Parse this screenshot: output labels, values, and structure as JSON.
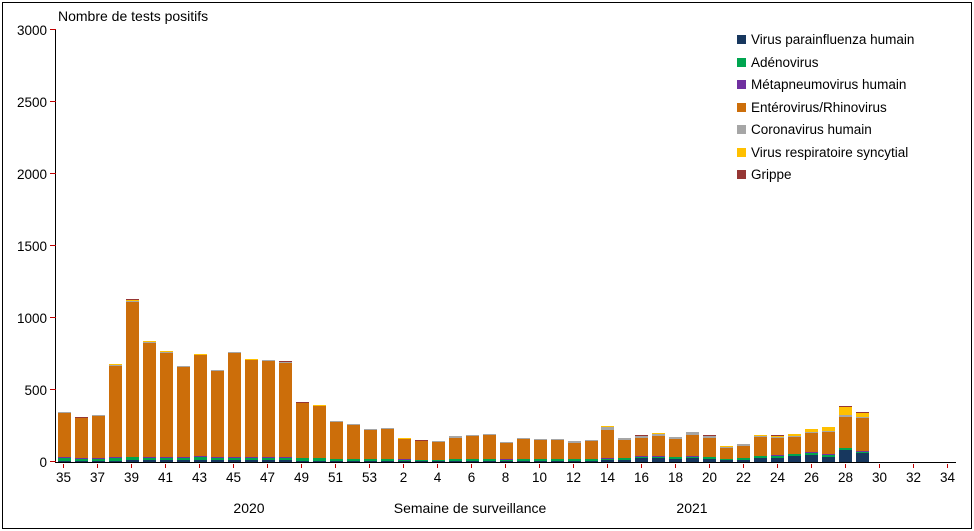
{
  "title": "Nombre de tests positifs",
  "x_axis": {
    "title": "Semaine de surveillance",
    "year_2020": "2020",
    "year_2021": "2021"
  },
  "chart_data": {
    "type": "bar",
    "stacked": true,
    "title": "Nombre de tests positifs",
    "xlabel": "Semaine de surveillance",
    "ylabel": "Nombre de tests positifs",
    "ylim": [
      0,
      3000
    ],
    "yticks": [
      0,
      500,
      1000,
      1500,
      2000,
      2500,
      3000
    ],
    "grid": false,
    "legend_position": "top-right",
    "total_week_slots": 53,
    "x_tick_labels": [
      "35",
      "37",
      "39",
      "41",
      "43",
      "45",
      "47",
      "49",
      "51",
      "53",
      "2",
      "4",
      "6",
      "8",
      "10",
      "12",
      "14",
      "16",
      "18",
      "20",
      "22",
      "24",
      "26",
      "28",
      "30",
      "32",
      "34"
    ],
    "categories": [
      "35",
      "36",
      "37",
      "38",
      "39",
      "40",
      "41",
      "42",
      "43",
      "44",
      "45",
      "46",
      "47",
      "48",
      "49",
      "50",
      "51",
      "52",
      "53",
      "1",
      "2",
      "3",
      "4",
      "5",
      "6",
      "7",
      "8",
      "9",
      "10",
      "11",
      "12",
      "13",
      "14",
      "15",
      "16",
      "17",
      "18",
      "19",
      "20",
      "21",
      "22",
      "23",
      "24",
      "25",
      "26",
      "27",
      "28",
      "29"
    ],
    "series": [
      {
        "name": "Virus parainfluenza humain",
        "key": "parainfluenza",
        "color": "#17375E",
        "values": [
          10,
          8,
          8,
          10,
          12,
          12,
          12,
          12,
          15,
          12,
          12,
          12,
          12,
          12,
          10,
          10,
          8,
          8,
          8,
          8,
          6,
          5,
          5,
          8,
          8,
          8,
          6,
          8,
          8,
          8,
          8,
          10,
          12,
          15,
          25,
          25,
          20,
          25,
          20,
          12,
          15,
          25,
          30,
          40,
          50,
          35,
          80,
          60
        ]
      },
      {
        "name": "Adénovirus",
        "key": "adenovirus",
        "color": "#00A550",
        "values": [
          18,
          16,
          16,
          18,
          20,
          18,
          18,
          16,
          18,
          16,
          16,
          16,
          16,
          16,
          15,
          15,
          12,
          12,
          12,
          12,
          10,
          10,
          10,
          12,
          12,
          12,
          10,
          12,
          12,
          12,
          10,
          10,
          12,
          12,
          12,
          12,
          12,
          12,
          12,
          8,
          10,
          15,
          15,
          15,
          15,
          15,
          15,
          12
        ]
      },
      {
        "name": "Métapneumovirus humain",
        "key": "metapneumovirus",
        "color": "#7030A0",
        "values": [
          4,
          4,
          4,
          4,
          5,
          5,
          5,
          5,
          8,
          6,
          6,
          5,
          5,
          5,
          4,
          4,
          3,
          3,
          3,
          3,
          2,
          2,
          2,
          2,
          2,
          2,
          2,
          2,
          2,
          2,
          2,
          2,
          3,
          3,
          3,
          3,
          3,
          3,
          3,
          2,
          2,
          3,
          3,
          3,
          4,
          4,
          5,
          4
        ]
      },
      {
        "name": "Entérovirus/Rhinovirus",
        "key": "enterovirus-rhinovirus",
        "color": "#CC6E0A",
        "values": [
          311,
          275,
          295,
          638,
          1077,
          793,
          725,
          628,
          700,
          597,
          722,
          673,
          668,
          658,
          378,
          358,
          256,
          236,
          201,
          205,
          140,
          126,
          121,
          148,
          158,
          163,
          114,
          138,
          128,
          128,
          115,
          123,
          194,
          125,
          130,
          142,
          125,
          151,
          134,
          78,
          87,
          131,
          117,
          114,
          132,
          155,
          213,
          228
        ]
      },
      {
        "name": "Coronavirus humain",
        "key": "coronavirus",
        "color": "#A6A6A6",
        "values": [
          3,
          3,
          3,
          5,
          5,
          5,
          5,
          5,
          5,
          5,
          5,
          5,
          5,
          5,
          4,
          4,
          4,
          4,
          4,
          5,
          5,
          5,
          5,
          8,
          8,
          8,
          6,
          8,
          8,
          8,
          8,
          8,
          25,
          12,
          12,
          15,
          12,
          15,
          12,
          8,
          8,
          6,
          6,
          6,
          8,
          8,
          12,
          8
        ]
      },
      {
        "name": "Virus respiratoire syncytial",
        "key": "vrs",
        "color": "#FFC000",
        "values": [
          2,
          2,
          2,
          3,
          8,
          5,
          3,
          2,
          2,
          2,
          2,
          2,
          2,
          2,
          2,
          2,
          1,
          1,
          1,
          1,
          1,
          1,
          1,
          1,
          1,
          1,
          1,
          1,
          1,
          1,
          1,
          1,
          2,
          2,
          2,
          2,
          2,
          2,
          2,
          1,
          2,
          8,
          12,
          15,
          18,
          25,
          60,
          30
        ]
      },
      {
        "name": "Grippe",
        "key": "grippe",
        "color": "#963634",
        "values": [
          2,
          2,
          2,
          2,
          3,
          2,
          2,
          2,
          2,
          2,
          2,
          2,
          2,
          2,
          2,
          2,
          1,
          1,
          1,
          1,
          1,
          1,
          1,
          1,
          1,
          1,
          1,
          1,
          1,
          1,
          1,
          1,
          2,
          1,
          1,
          1,
          1,
          2,
          2,
          1,
          1,
          2,
          2,
          2,
          3,
          3,
          5,
          3
        ]
      }
    ]
  }
}
